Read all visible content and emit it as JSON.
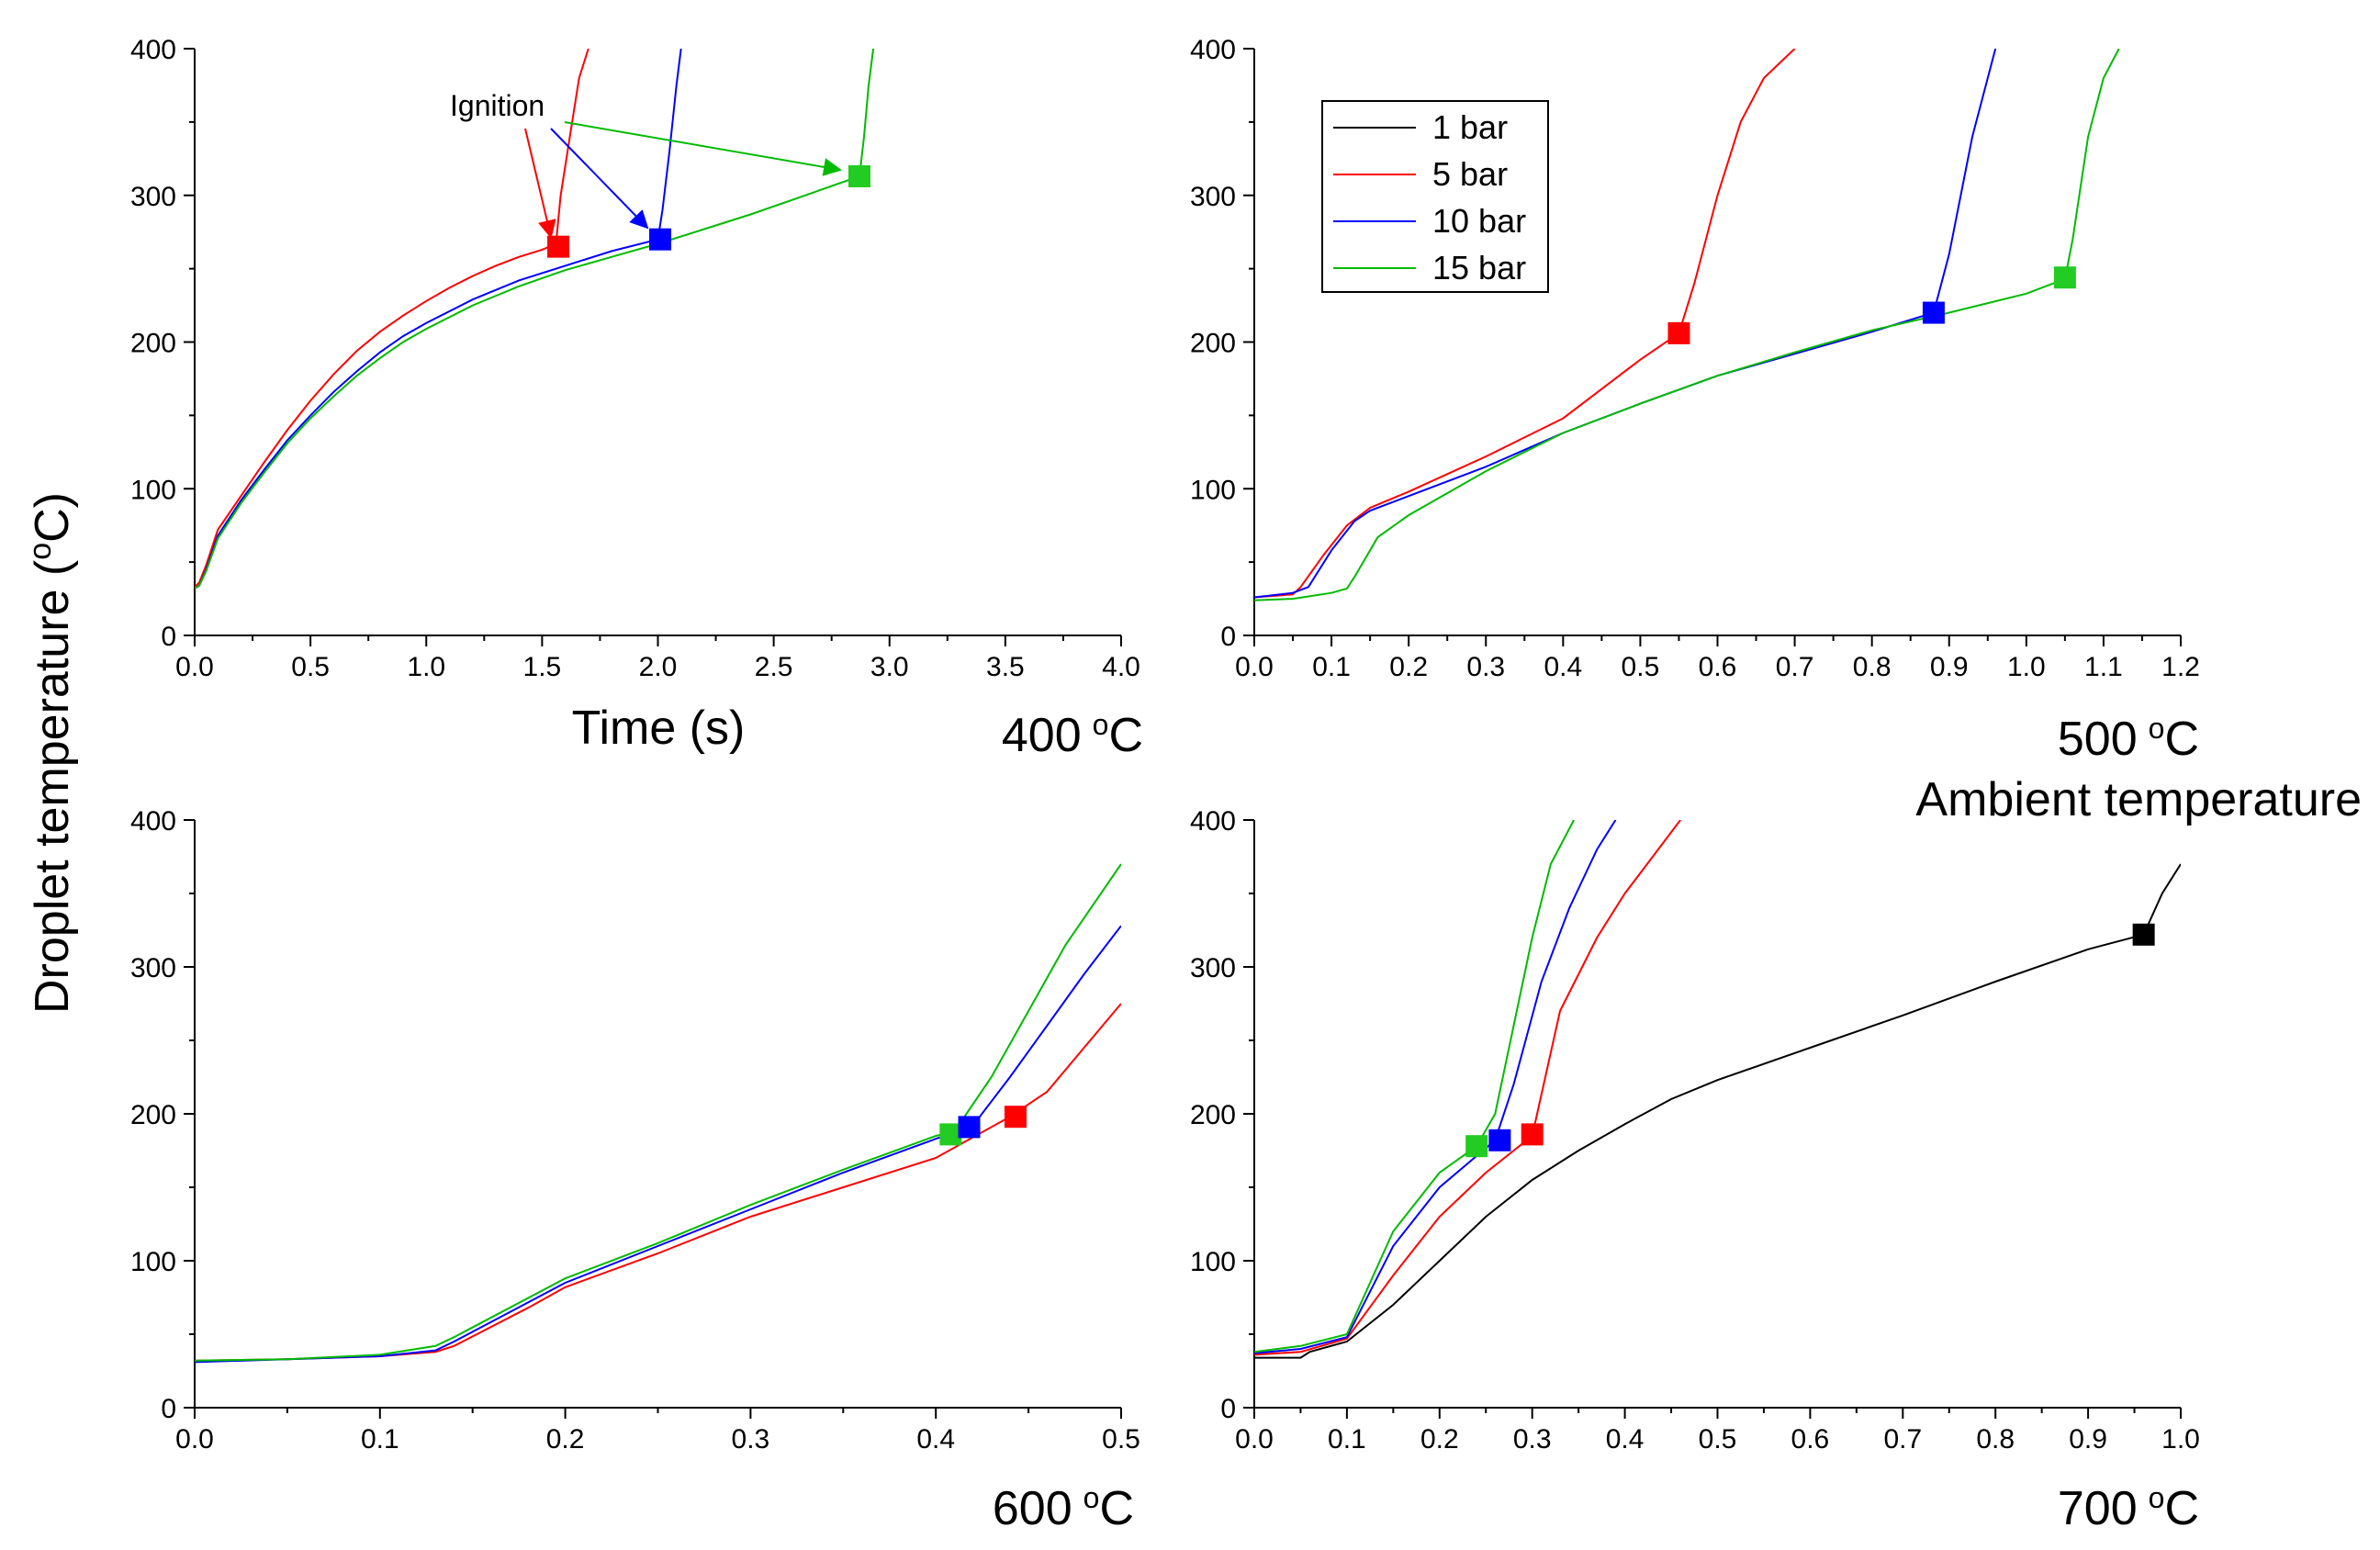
{
  "figure": {
    "ylabel": "Droplet temperature (",
    "ylabel_sup": "o",
    "ylabel_unit": "C)",
    "shared_caption": "Ambient temperature"
  },
  "colors": {
    "1 bar": "#000000",
    "5 bar": "#ff0000",
    "10 bar": "#0000ff",
    "15 bar": "#00bb00",
    "marker_red": "#ff0000",
    "marker_blue": "#0000ff",
    "marker_green": "#22cc22",
    "marker_black": "#000000"
  },
  "legend": {
    "entries": [
      "1 bar",
      "5 bar",
      "10 bar",
      "15 bar"
    ]
  },
  "chart_data": [
    {
      "type": "line",
      "panel_label": "400",
      "panel_label_unit": "C",
      "xlabel": "Time (s)",
      "xlim": [
        0,
        4.0
      ],
      "ylim": [
        0,
        400
      ],
      "xticks": [
        "0.0",
        "0.5",
        "1.0",
        "1.5",
        "2.0",
        "2.5",
        "3.0",
        "3.5",
        "4.0"
      ],
      "yticks": [
        "0",
        "100",
        "200",
        "300",
        "400"
      ],
      "series": [
        {
          "name": "5 bar",
          "x": [
            0,
            0.02,
            0.05,
            0.1,
            0.2,
            0.3,
            0.4,
            0.5,
            0.6,
            0.7,
            0.8,
            0.9,
            1.0,
            1.1,
            1.2,
            1.3,
            1.4,
            1.5,
            1.56,
            1.58,
            1.62,
            1.66,
            1.7
          ],
          "y": [
            33,
            36,
            48,
            72,
            95,
            118,
            140,
            160,
            178,
            194,
            207,
            218,
            228,
            237,
            245,
            252,
            258,
            263,
            267,
            300,
            340,
            380,
            400
          ]
        },
        {
          "name": "10 bar",
          "x": [
            0,
            0.02,
            0.05,
            0.1,
            0.2,
            0.3,
            0.4,
            0.5,
            0.6,
            0.7,
            0.8,
            0.9,
            1.0,
            1.2,
            1.4,
            1.6,
            1.8,
            2.0,
            2.02,
            2.05,
            2.08,
            2.1
          ],
          "y": [
            32,
            34,
            45,
            68,
            92,
            113,
            133,
            150,
            166,
            180,
            193,
            204,
            213,
            229,
            242,
            252,
            262,
            270,
            290,
            330,
            375,
            400
          ]
        },
        {
          "name": "15 bar",
          "x": [
            0,
            0.02,
            0.05,
            0.1,
            0.2,
            0.3,
            0.4,
            0.5,
            0.6,
            0.7,
            0.8,
            0.9,
            1.0,
            1.2,
            1.4,
            1.6,
            1.8,
            2.0,
            2.2,
            2.4,
            2.6,
            2.87,
            2.89,
            2.91,
            2.93
          ],
          "y": [
            32,
            34,
            44,
            66,
            90,
            111,
            131,
            148,
            163,
            177,
            189,
            200,
            209,
            225,
            238,
            249,
            258,
            267,
            277,
            287,
            298,
            313,
            340,
            375,
            400
          ]
        }
      ],
      "markers": [
        {
          "series": "5 bar",
          "x": 1.57,
          "y": 265
        },
        {
          "series": "10 bar",
          "x": 2.01,
          "y": 270
        },
        {
          "series": "15 bar",
          "x": 2.87,
          "y": 313
        }
      ],
      "annotation": {
        "text": "Ignition",
        "target_series": [
          "5 bar",
          "10 bar",
          "15 bar"
        ]
      }
    },
    {
      "type": "line",
      "panel_label": "500",
      "panel_label_unit": "C",
      "xlim": [
        0,
        1.2
      ],
      "ylim": [
        0,
        400
      ],
      "xticks": [
        "0.0",
        "0.1",
        "0.2",
        "0.3",
        "0.4",
        "0.5",
        "0.6",
        "0.7",
        "0.8",
        "0.9",
        "1.0",
        "1.1",
        "1.2"
      ],
      "yticks": [
        "0",
        "100",
        "200",
        "300",
        "400"
      ],
      "series": [
        {
          "name": "5 bar",
          "x": [
            0,
            0.05,
            0.06,
            0.09,
            0.12,
            0.15,
            0.2,
            0.3,
            0.4,
            0.46,
            0.5,
            0.55,
            0.57,
            0.6,
            0.63,
            0.66,
            0.7
          ],
          "y": [
            26,
            28,
            33,
            55,
            75,
            87,
            98,
            122,
            148,
            172,
            188,
            206,
            240,
            300,
            350,
            380,
            400
          ]
        },
        {
          "name": "10 bar",
          "x": [
            0,
            0.05,
            0.07,
            0.1,
            0.13,
            0.15,
            0.2,
            0.3,
            0.4,
            0.5,
            0.6,
            0.7,
            0.8,
            0.88,
            0.9,
            0.93,
            0.96
          ],
          "y": [
            26,
            29,
            33,
            58,
            78,
            85,
            95,
            115,
            138,
            158,
            177,
            192,
            207,
            220,
            260,
            340,
            400
          ]
        },
        {
          "name": "15 bar",
          "x": [
            0,
            0.05,
            0.1,
            0.12,
            0.13,
            0.16,
            0.2,
            0.3,
            0.4,
            0.5,
            0.6,
            0.7,
            0.8,
            0.9,
            1.0,
            1.05,
            1.06,
            1.08,
            1.1,
            1.12
          ],
          "y": [
            24,
            25,
            29,
            32,
            40,
            67,
            82,
            112,
            138,
            158,
            177,
            193,
            208,
            220,
            233,
            243,
            270,
            340,
            380,
            400
          ]
        }
      ],
      "markers": [
        {
          "series": "5 bar",
          "x": 0.55,
          "y": 206
        },
        {
          "series": "10 bar",
          "x": 0.88,
          "y": 220
        },
        {
          "series": "15 bar",
          "x": 1.05,
          "y": 244
        }
      ],
      "legend_location": "top-left"
    },
    {
      "type": "line",
      "panel_label": "600",
      "panel_label_unit": "C",
      "xlim": [
        0,
        0.5
      ],
      "ylim": [
        0,
        400
      ],
      "xticks": [
        "0.0",
        "0.1",
        "0.2",
        "0.3",
        "0.4",
        "0.5"
      ],
      "yticks": [
        "0",
        "100",
        "200",
        "300",
        "400"
      ],
      "series": [
        {
          "name": "5 bar",
          "x": [
            0,
            0.05,
            0.1,
            0.13,
            0.14,
            0.18,
            0.2,
            0.25,
            0.3,
            0.35,
            0.4,
            0.44,
            0.46,
            0.48,
            0.5
          ],
          "y": [
            32,
            33,
            35,
            38,
            42,
            68,
            82,
            105,
            130,
            150,
            170,
            198,
            215,
            245,
            275
          ]
        },
        {
          "name": "10 bar",
          "x": [
            0,
            0.05,
            0.1,
            0.13,
            0.14,
            0.2,
            0.25,
            0.3,
            0.35,
            0.4,
            0.42,
            0.44,
            0.46,
            0.48,
            0.5
          ],
          "y": [
            31,
            33,
            35,
            39,
            45,
            85,
            110,
            135,
            160,
            183,
            192,
            225,
            260,
            295,
            328
          ]
        },
        {
          "name": "15 bar",
          "x": [
            0,
            0.05,
            0.1,
            0.13,
            0.14,
            0.2,
            0.25,
            0.3,
            0.35,
            0.4,
            0.41,
            0.43,
            0.45,
            0.47,
            0.5
          ],
          "y": [
            32,
            33,
            36,
            42,
            48,
            88,
            112,
            138,
            162,
            185,
            188,
            225,
            270,
            315,
            370
          ]
        }
      ],
      "markers": [
        {
          "series": "15 bar",
          "x": 0.408,
          "y": 186
        },
        {
          "series": "10 bar",
          "x": 0.418,
          "y": 191
        },
        {
          "series": "5 bar",
          "x": 0.443,
          "y": 198
        }
      ]
    },
    {
      "type": "line",
      "panel_label": "700",
      "panel_label_unit": "C",
      "xlim": [
        0,
        1.0
      ],
      "ylim": [
        0,
        400
      ],
      "xticks": [
        "0.0",
        "0.1",
        "0.2",
        "0.3",
        "0.4",
        "0.5",
        "0.6",
        "0.7",
        "0.8",
        "0.9",
        "1.0"
      ],
      "yticks": [
        "0",
        "100",
        "200",
        "300",
        "400"
      ],
      "series": [
        {
          "name": "1 bar",
          "x": [
            0,
            0.05,
            0.06,
            0.1,
            0.15,
            0.2,
            0.25,
            0.3,
            0.35,
            0.4,
            0.45,
            0.5,
            0.6,
            0.7,
            0.8,
            0.9,
            0.96,
            0.98,
            1.0
          ],
          "y": [
            34,
            34,
            38,
            45,
            70,
            100,
            130,
            155,
            175,
            193,
            210,
            223,
            245,
            267,
            290,
            312,
            322,
            350,
            370
          ]
        },
        {
          "name": "5 bar",
          "x": [
            0,
            0.05,
            0.1,
            0.15,
            0.2,
            0.25,
            0.3,
            0.33,
            0.37,
            0.4,
            0.43,
            0.46
          ],
          "y": [
            36,
            38,
            47,
            90,
            130,
            160,
            185,
            270,
            320,
            350,
            375,
            400
          ]
        },
        {
          "name": "10 bar",
          "x": [
            0,
            0.05,
            0.1,
            0.15,
            0.2,
            0.26,
            0.28,
            0.31,
            0.34,
            0.37,
            0.39
          ],
          "y": [
            37,
            40,
            48,
            110,
            150,
            182,
            220,
            290,
            340,
            380,
            400
          ]
        },
        {
          "name": "15 bar",
          "x": [
            0,
            0.05,
            0.1,
            0.15,
            0.2,
            0.24,
            0.26,
            0.28,
            0.3,
            0.32,
            0.345
          ],
          "y": [
            38,
            42,
            50,
            120,
            160,
            178,
            200,
            260,
            320,
            370,
            400
          ]
        }
      ],
      "markers": [
        {
          "series": "15 bar",
          "x": 0.24,
          "y": 178
        },
        {
          "series": "10 bar",
          "x": 0.265,
          "y": 182
        },
        {
          "series": "5 bar",
          "x": 0.3,
          "y": 186
        },
        {
          "series": "1 bar",
          "x": 0.96,
          "y": 322
        }
      ]
    }
  ]
}
